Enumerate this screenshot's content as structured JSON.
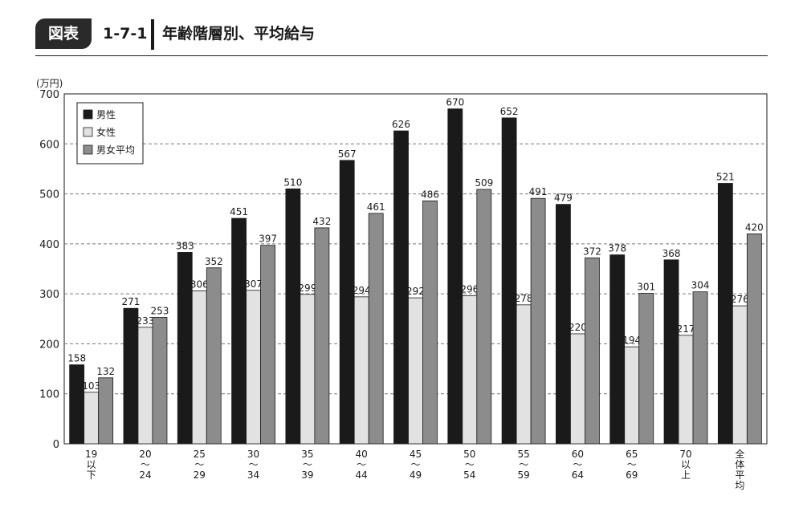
{
  "header": {
    "badge": "図表",
    "number": "1-7-1",
    "title": "年齢階層別、平均給与"
  },
  "chart_data": {
    "type": "bar",
    "ylabel": "(万円)",
    "ylim": [
      0,
      700
    ],
    "yticks": [
      0,
      100,
      200,
      300,
      400,
      500,
      600,
      700
    ],
    "grid": "horizontal-dashed",
    "legend_position": "top-left",
    "categories": [
      [
        "19",
        "以",
        "下"
      ],
      [
        "20",
        "～",
        "24"
      ],
      [
        "25",
        "～",
        "29"
      ],
      [
        "30",
        "～",
        "34"
      ],
      [
        "35",
        "～",
        "39"
      ],
      [
        "40",
        "～",
        "44"
      ],
      [
        "45",
        "～",
        "49"
      ],
      [
        "50",
        "～",
        "54"
      ],
      [
        "55",
        "～",
        "59"
      ],
      [
        "60",
        "～",
        "64"
      ],
      [
        "65",
        "～",
        "69"
      ],
      [
        "70",
        "以",
        "上"
      ],
      [
        "全",
        "体",
        "平",
        "均"
      ]
    ],
    "series": [
      {
        "name": "男性",
        "color": "#1a1a1a",
        "values": [
          158,
          271,
          383,
          451,
          510,
          567,
          626,
          670,
          652,
          479,
          378,
          368,
          521
        ]
      },
      {
        "name": "女性",
        "color": "#e2e2e2",
        "values": [
          103,
          233,
          306,
          307,
          299,
          294,
          292,
          296,
          278,
          220,
          194,
          217,
          276
        ]
      },
      {
        "name": "男女平均",
        "color": "#8c8c8c",
        "values": [
          132,
          253,
          352,
          397,
          432,
          461,
          486,
          509,
          491,
          372,
          301,
          304,
          420
        ]
      }
    ]
  }
}
